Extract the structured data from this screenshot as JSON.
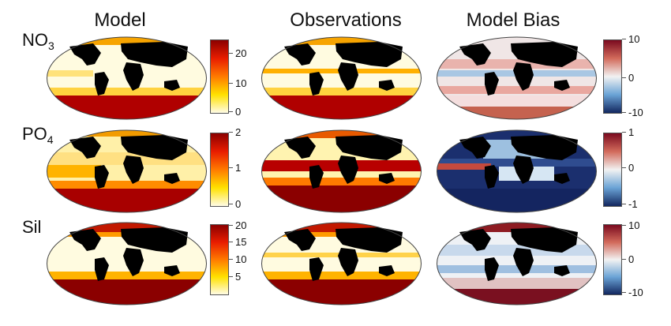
{
  "columns": [
    "Model",
    "Observations",
    "Model Bias"
  ],
  "rows": [
    {
      "label": "NO",
      "sub": "3",
      "model_ticks": [
        "20",
        "10",
        "0"
      ],
      "bias_ticks": [
        "10",
        "0",
        "-10"
      ]
    },
    {
      "label": "PO",
      "sub": "4",
      "model_ticks": [
        "2",
        "1",
        "0"
      ],
      "bias_ticks": [
        "1",
        "0",
        "-1"
      ]
    },
    {
      "label": "Sil",
      "sub": "",
      "model_ticks": [
        "20",
        "15",
        "10",
        "5"
      ],
      "bias_ticks": [
        "10",
        "0",
        "-10"
      ]
    }
  ],
  "colors": {
    "heat_high": "#8b0000",
    "heat_mid": "#ff6a00",
    "heat_low": "#fffbe0",
    "div_high": "#7a0a1f",
    "div_mid": "#f2f2f2",
    "div_low": "#12275f",
    "land": "#000000"
  }
}
